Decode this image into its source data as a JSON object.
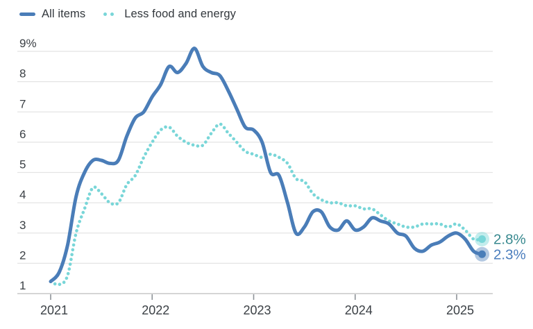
{
  "legend": {
    "items": [
      {
        "label": "All items",
        "swatch": "line"
      },
      {
        "label": "Less food and energy",
        "swatch": "dots"
      }
    ]
  },
  "colors": {
    "all_items": "#4a7db8",
    "core": "#79d6d8",
    "all_items_label": "#4a7dbd",
    "core_label": "#38898f",
    "all_items_halo": "rgba(74,125,184,0.42)",
    "core_halo": "rgba(121,214,216,0.45)",
    "grid": "#e4e4e4",
    "axis": "#c7c7c7",
    "tick": "#8d9297",
    "text": "#3b4045",
    "background": "#ffffff"
  },
  "chart_data": {
    "type": "line",
    "x_start": "2021-01",
    "x_frequency": "monthly",
    "x_tick_labels": [
      "2021",
      "2022",
      "2023",
      "2024",
      "2025"
    ],
    "y_ticks": [
      1,
      2,
      3,
      4,
      5,
      6,
      7,
      8,
      9
    ],
    "y_tick_labels": [
      "1",
      "2",
      "3",
      "4",
      "5",
      "6",
      "7",
      "8",
      "9%"
    ],
    "ylim": [
      1,
      9
    ],
    "grid": "horizontal",
    "legend_position": "top-left",
    "series": [
      {
        "name": "All items",
        "style": "solid",
        "color": "#4a7db8",
        "label_color": "#4a7dbd",
        "halo_color": "rgba(74,125,184,0.42)",
        "end_label": "2.3%",
        "values": [
          1.4,
          1.7,
          2.6,
          4.2,
          5.0,
          5.4,
          5.4,
          5.3,
          5.4,
          6.2,
          6.8,
          7.0,
          7.5,
          7.9,
          8.5,
          8.3,
          8.6,
          9.1,
          8.5,
          8.3,
          8.2,
          7.7,
          7.1,
          6.5,
          6.4,
          6.0,
          5.0,
          4.9,
          4.0,
          3.0,
          3.2,
          3.7,
          3.7,
          3.2,
          3.1,
          3.4,
          3.1,
          3.2,
          3.5,
          3.4,
          3.3,
          3.0,
          2.9,
          2.5,
          2.4,
          2.6,
          2.7,
          2.9,
          3.0,
          2.8,
          2.4,
          2.3
        ]
      },
      {
        "name": "Less food and energy",
        "style": "dotted",
        "color": "#79d6d8",
        "label_color": "#38898f",
        "halo_color": "rgba(121,214,216,0.45)",
        "end_label": "2.8%",
        "values": [
          1.4,
          1.3,
          1.6,
          3.0,
          3.8,
          4.5,
          4.3,
          4.0,
          4.0,
          4.6,
          4.9,
          5.5,
          6.0,
          6.4,
          6.5,
          6.2,
          6.0,
          5.9,
          5.9,
          6.3,
          6.6,
          6.3,
          6.0,
          5.7,
          5.6,
          5.5,
          5.6,
          5.5,
          5.3,
          4.8,
          4.7,
          4.3,
          4.1,
          4.0,
          4.0,
          3.9,
          3.9,
          3.8,
          3.8,
          3.6,
          3.4,
          3.3,
          3.2,
          3.2,
          3.3,
          3.3,
          3.3,
          3.2,
          3.3,
          3.1,
          2.8,
          2.8
        ]
      }
    ]
  }
}
